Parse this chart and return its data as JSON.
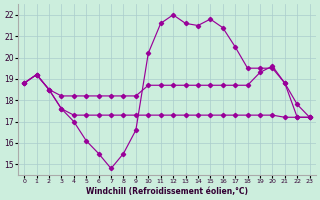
{
  "xlabel": "Windchill (Refroidissement éolien,°C)",
  "bg_color": "#cceedd",
  "line_color": "#990099",
  "ylim": [
    14.5,
    22.5
  ],
  "xlim": [
    -0.5,
    23.5
  ],
  "yticks": [
    15,
    16,
    17,
    18,
    19,
    20,
    21,
    22
  ],
  "xticks": [
    0,
    1,
    2,
    3,
    4,
    5,
    6,
    7,
    8,
    9,
    10,
    11,
    12,
    13,
    14,
    15,
    16,
    17,
    18,
    19,
    20,
    21,
    22,
    23
  ],
  "line1_x": [
    0,
    1,
    2,
    3,
    4,
    5,
    6,
    7,
    8,
    9,
    10,
    11,
    12,
    13,
    14,
    15,
    16,
    17,
    18,
    19,
    20,
    21,
    22,
    23
  ],
  "line1_y": [
    18.8,
    19.2,
    18.5,
    18.2,
    18.2,
    18.2,
    18.2,
    18.2,
    18.2,
    18.2,
    18.7,
    18.7,
    18.7,
    18.7,
    18.7,
    18.7,
    18.7,
    18.7,
    18.7,
    19.3,
    19.6,
    18.8,
    17.2,
    17.2
  ],
  "line2_x": [
    0,
    1,
    2,
    3,
    4,
    5,
    6,
    7,
    8,
    9,
    10,
    11,
    12,
    13,
    14,
    15,
    16,
    17,
    18,
    19,
    20,
    21,
    22,
    23
  ],
  "line2_y": [
    18.8,
    19.2,
    18.5,
    17.6,
    17.3,
    17.3,
    17.3,
    17.3,
    17.3,
    17.3,
    17.3,
    17.3,
    17.3,
    17.3,
    17.3,
    17.3,
    17.3,
    17.3,
    17.3,
    17.3,
    17.3,
    17.2,
    17.2,
    17.2
  ],
  "line3_x": [
    0,
    1,
    2,
    3,
    4,
    5,
    6,
    7,
    8,
    9,
    10,
    11,
    12,
    13,
    14,
    15,
    16,
    17,
    18,
    19,
    20,
    21,
    22,
    23
  ],
  "line3_y": [
    18.8,
    19.2,
    18.5,
    17.6,
    17.0,
    16.1,
    15.5,
    14.8,
    15.5,
    16.6,
    20.2,
    21.6,
    22.0,
    21.6,
    21.5,
    21.8,
    21.4,
    20.5,
    19.5,
    19.5,
    19.5,
    18.8,
    17.8,
    17.2
  ]
}
